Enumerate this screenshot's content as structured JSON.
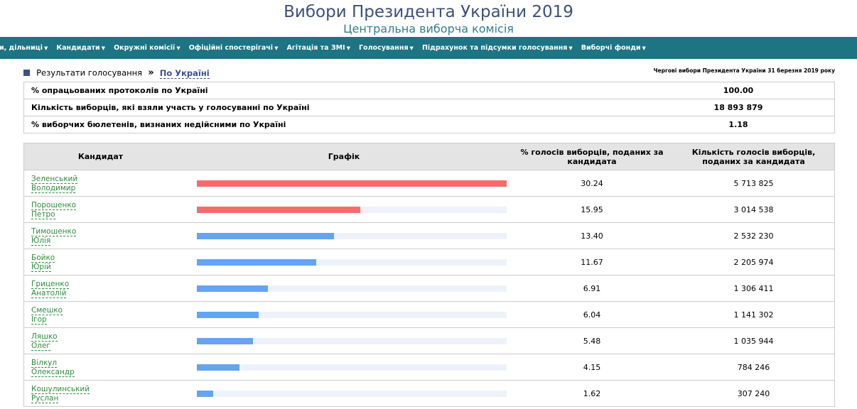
{
  "header": {
    "title": "Вибори Президента України 2019",
    "subtitle": "Центральна виборча комісія"
  },
  "nav": {
    "items": [
      "ги, дільниці",
      "Кандидати",
      "Окружні комісії",
      "Офіційні спостерігачі",
      "Агітація та ЗМІ",
      "Голосування",
      "Підрахунок та підсумки голосування",
      "Виборчі фонди"
    ]
  },
  "breadcrumb": {
    "label": "Результати голосування",
    "separator": "»",
    "link": "По Україні",
    "election": "Чергові вибори Президента України 31 березня 2019 року"
  },
  "summary": [
    {
      "label": "% опрацьованих протоколів по Україні",
      "value": "100.00"
    },
    {
      "label": "Кількість виборців, які взяли участь у голосуванні по Україні",
      "value": "18 893 879"
    },
    {
      "label": "% виборчих бюлетенів, визнаних недійсними по Україні",
      "value": "1.18"
    }
  ],
  "results": {
    "headers": {
      "candidate": "Кандидат",
      "graph": "Графік",
      "pct": "% голосів виборців, поданих за кандидата",
      "votes": "Кількість голосів виборців, поданих за кандидата"
    },
    "colors": {
      "top": "#f76b6b",
      "other": "#64a4f2",
      "track": "#edf2fa"
    },
    "rows": [
      {
        "last": "Зеленський",
        "first": "Володимир",
        "pct": "30.24",
        "votes": "5 713 825",
        "share": 30.24,
        "top": true
      },
      {
        "last": "Порошенко",
        "first": "Петро",
        "pct": "15.95",
        "votes": "3 014 538",
        "share": 15.95,
        "top": true
      },
      {
        "last": "Тимошенко",
        "first": "Юлія",
        "pct": "13.40",
        "votes": "2 532 230",
        "share": 13.4,
        "top": false
      },
      {
        "last": "Бойко",
        "first": "Юрій",
        "pct": "11.67",
        "votes": "2 205 974",
        "share": 11.67,
        "top": false
      },
      {
        "last": "Гриценко",
        "first": "Анатолій",
        "pct": "6.91",
        "votes": "1 306 411",
        "share": 6.91,
        "top": false
      },
      {
        "last": "Смешко",
        "first": "Ігор",
        "pct": "6.04",
        "votes": "1 141 302",
        "share": 6.04,
        "top": false
      },
      {
        "last": "Ляшко",
        "first": "Олег",
        "pct": "5.48",
        "votes": "1 035 944",
        "share": 5.48,
        "top": false
      },
      {
        "last": "Вілкул",
        "first": "Олександр",
        "pct": "4.15",
        "votes": "784 246",
        "share": 4.15,
        "top": false
      },
      {
        "last": "Кошулинський",
        "first": "Руслан",
        "pct": "1.62",
        "votes": "307 240",
        "share": 1.62,
        "top": false
      }
    ]
  }
}
